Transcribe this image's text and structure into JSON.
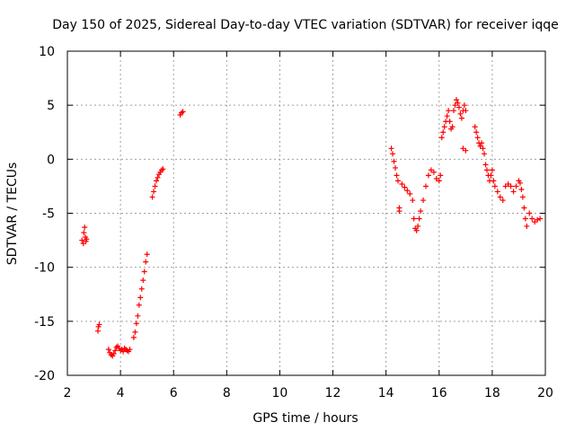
{
  "chart_data": {
    "type": "scatter",
    "title": "Day 150 of 2025, Sidereal Day-to-day VTEC variation (SDTVAR) for receiver iqqe",
    "xlabel": "GPS time / hours",
    "ylabel": "SDTVAR / TECUs",
    "xlim": [
      2,
      20
    ],
    "ylim": [
      -20,
      10
    ],
    "xticks": [
      2,
      4,
      6,
      8,
      10,
      12,
      14,
      16,
      18,
      20
    ],
    "yticks": [
      -20,
      -15,
      -10,
      -5,
      0,
      5,
      10
    ],
    "grid": true,
    "marker": "+",
    "colors": {
      "series": "#ff0000",
      "grid": "#a0a0a0",
      "axis": "#000000"
    },
    "series": [
      {
        "name": "SDTVAR",
        "x": [
          2.55,
          2.6,
          2.62,
          2.65,
          2.68,
          2.7,
          2.72,
          3.15,
          3.17,
          3.2,
          3.55,
          3.6,
          3.65,
          3.7,
          3.75,
          3.8,
          3.85,
          3.9,
          3.95,
          4.0,
          4.05,
          4.1,
          4.15,
          4.2,
          4.25,
          4.3,
          4.35,
          4.5,
          4.55,
          4.6,
          4.65,
          4.7,
          4.75,
          4.8,
          4.85,
          4.9,
          4.95,
          5.0,
          5.2,
          5.25,
          5.3,
          5.35,
          5.4,
          5.45,
          5.5,
          5.55,
          5.6,
          6.25,
          6.3,
          6.35,
          14.2,
          14.25,
          14.3,
          14.35,
          14.4,
          14.45,
          14.5,
          14.5,
          14.6,
          14.7,
          14.8,
          14.9,
          15.0,
          15.05,
          15.1,
          15.15,
          15.2,
          15.25,
          15.3,
          15.4,
          15.5,
          15.6,
          15.7,
          15.8,
          15.9,
          16.0,
          16.05,
          16.1,
          16.15,
          16.2,
          16.25,
          16.3,
          16.35,
          16.4,
          16.45,
          16.5,
          16.55,
          16.6,
          16.65,
          16.7,
          16.75,
          16.8,
          16.85,
          16.9,
          16.95,
          17.0,
          16.9,
          17.0,
          17.35,
          17.4,
          17.45,
          17.5,
          17.55,
          17.6,
          17.65,
          17.7,
          17.75,
          17.8,
          17.85,
          17.9,
          17.95,
          18.0,
          18.05,
          18.1,
          18.2,
          18.3,
          18.4,
          18.5,
          18.6,
          18.7,
          18.8,
          18.9,
          19.0,
          19.05,
          19.1,
          19.15,
          19.2,
          19.25,
          19.3,
          19.4,
          19.5,
          19.6,
          19.7,
          19.8
        ],
        "y": [
          -7.5,
          -7.8,
          -6.8,
          -6.3,
          -7.2,
          -7.6,
          -7.4,
          -15.9,
          -15.5,
          -15.3,
          -17.6,
          -17.9,
          -18.1,
          -18.2,
          -18.0,
          -17.7,
          -17.4,
          -17.3,
          -17.5,
          -17.7,
          -17.6,
          -17.8,
          -17.5,
          -17.6,
          -17.7,
          -17.8,
          -17.6,
          -16.5,
          -16.0,
          -15.2,
          -14.5,
          -13.5,
          -12.8,
          -12.0,
          -11.2,
          -10.4,
          -9.5,
          -8.8,
          -3.5,
          -3.0,
          -2.5,
          -2.0,
          -1.7,
          -1.4,
          -1.2,
          -1.0,
          -0.9,
          4.1,
          4.3,
          4.4,
          1.0,
          0.5,
          -0.2,
          -0.8,
          -1.5,
          -2.0,
          -4.5,
          -4.8,
          -2.3,
          -2.6,
          -2.9,
          -3.2,
          -3.8,
          -5.5,
          -6.4,
          -6.6,
          -6.2,
          -5.5,
          -4.8,
          -3.8,
          -2.5,
          -1.5,
          -1.0,
          -1.2,
          -1.8,
          -2.0,
          -1.5,
          2.0,
          2.5,
          3.0,
          3.5,
          4.0,
          4.5,
          3.5,
          2.8,
          3.0,
          4.5,
          5.0,
          5.5,
          5.2,
          4.8,
          4.2,
          3.8,
          4.5,
          5.0,
          4.5,
          1.0,
          0.8,
          3.0,
          2.5,
          2.0,
          1.5,
          1.2,
          1.5,
          1.0,
          0.5,
          -0.5,
          -1.0,
          -1.5,
          -2.0,
          -1.5,
          -1.0,
          -2.0,
          -2.5,
          -3.0,
          -3.5,
          -3.8,
          -2.5,
          -2.3,
          -2.5,
          -3.0,
          -2.5,
          -2.0,
          -2.2,
          -2.8,
          -3.5,
          -4.5,
          -5.5,
          -6.2,
          -5.0,
          -5.5,
          -5.8,
          -5.6,
          -5.5
        ]
      }
    ]
  }
}
